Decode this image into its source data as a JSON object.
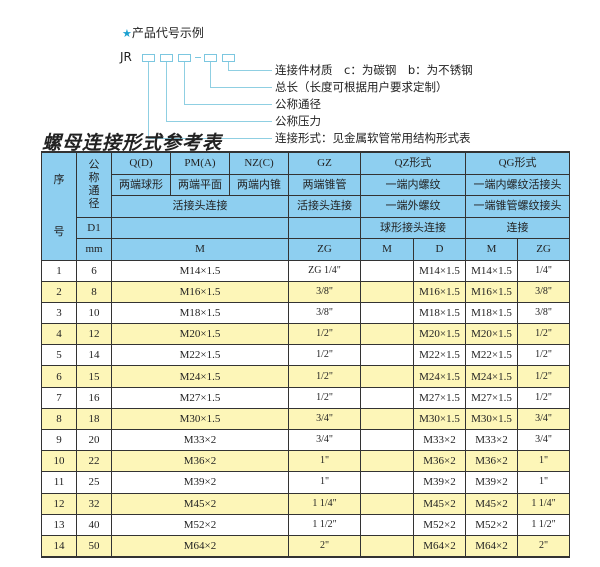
{
  "legend": {
    "title": "产品代号示例",
    "code_prefix": "JR",
    "items": [
      "连接件材质　c：为碳钢　b：为不锈钢",
      "总长（长度可根据用户要求定制）",
      "公称通径",
      "公称压力",
      "连接形式：见金属软管常用结构形式表"
    ]
  },
  "table_title": "螺母连接形式参考表",
  "header": {
    "seq": "序号",
    "seq_top": "序",
    "seq_bottom": "号",
    "nominal_diameter": "公称通径",
    "d1": "D1",
    "mm": "mm",
    "row1": [
      "Q(D)",
      "PM(A)",
      "NZ(C)",
      "GZ",
      "QZ形式",
      "QG形式"
    ],
    "row2": [
      "两端球形",
      "两端平面",
      "两端内锥",
      "两端锥管",
      "一端内螺纹",
      "一端内螺纹活接头"
    ],
    "row3": [
      "活接头连接",
      "活接头连接",
      "一端外螺纹",
      "一端锥管螺纹接头"
    ],
    "row4": [
      "",
      "",
      "球形接头连接",
      "连接"
    ],
    "row5": [
      "M",
      "ZG",
      "M",
      "D",
      "M",
      "ZG"
    ]
  },
  "rows": [
    [
      "1",
      "6",
      "M14×1.5",
      "ZG 1/4\"",
      "",
      "M14×1.5",
      "M14×1.5",
      "1/4\""
    ],
    [
      "2",
      "8",
      "M16×1.5",
      "3/8\"",
      "",
      "M16×1.5",
      "M16×1.5",
      "3/8\""
    ],
    [
      "3",
      "10",
      "M18×1.5",
      "3/8\"",
      "",
      "M18×1.5",
      "M18×1.5",
      "3/8\""
    ],
    [
      "4",
      "12",
      "M20×1.5",
      "1/2\"",
      "",
      "M20×1.5",
      "M20×1.5",
      "1/2\""
    ],
    [
      "5",
      "14",
      "M22×1.5",
      "1/2\"",
      "",
      "M22×1.5",
      "M22×1.5",
      "1/2\""
    ],
    [
      "6",
      "15",
      "M24×1.5",
      "1/2\"",
      "",
      "M24×1.5",
      "M24×1.5",
      "1/2\""
    ],
    [
      "7",
      "16",
      "M27×1.5",
      "1/2\"",
      "",
      "M27×1.5",
      "M27×1.5",
      "1/2\""
    ],
    [
      "8",
      "18",
      "M30×1.5",
      "3/4\"",
      "",
      "M30×1.5",
      "M30×1.5",
      "3/4\""
    ],
    [
      "9",
      "20",
      "M33×2",
      "3/4\"",
      "",
      "M33×2",
      "M33×2",
      "3/4\""
    ],
    [
      "10",
      "22",
      "M36×2",
      "1\"",
      "",
      "M36×2",
      "M36×2",
      "1\""
    ],
    [
      "11",
      "25",
      "M39×2",
      "1\"",
      "",
      "M39×2",
      "M39×2",
      "1\""
    ],
    [
      "12",
      "32",
      "M45×2",
      "1 1/4\"",
      "",
      "M45×2",
      "M45×2",
      "1 1/4\""
    ],
    [
      "13",
      "40",
      "M52×2",
      "1 1/2\"",
      "",
      "M52×2",
      "M52×2",
      "1 1/2\""
    ],
    [
      "14",
      "50",
      "M64×2",
      "2\"",
      "",
      "M64×2",
      "M64×2",
      "2\""
    ]
  ],
  "colors": {
    "header_bg": "#8ecff0",
    "alt_row_bg": "#fdf6b8",
    "line": "#8fcfe2",
    "star": "#1aa0d0"
  }
}
